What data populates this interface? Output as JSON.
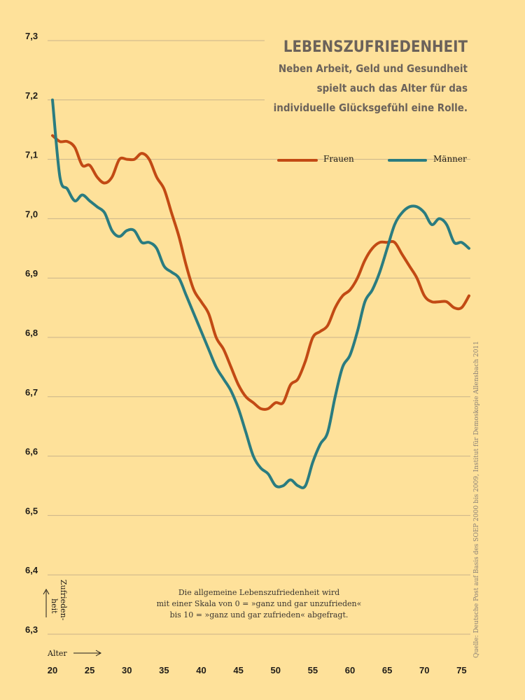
{
  "chart_data": {
    "type": "line",
    "title": "LEBENSZUFRIEDENHEIT",
    "subtitle": [
      "Neben Arbeit, Geld und Gesundheit",
      "spielt auch das Alter für das",
      "individuelle Glücksgefühl eine Rolle."
    ],
    "xlabel": "Alter",
    "ylabel": "Zufrieden-heit",
    "xlim": [
      20,
      76
    ],
    "ylim": [
      6.3,
      7.3
    ],
    "x_ticks": [
      "20",
      "25",
      "30",
      "35",
      "40",
      "45",
      "50",
      "55",
      "60",
      "65",
      "70",
      "75"
    ],
    "y_ticks": [
      "7,3",
      "7,2",
      "7,1",
      "7,0",
      "6,9",
      "6,8",
      "6,7",
      "6,6",
      "6,5",
      "6,4",
      "6,3"
    ],
    "grid": true,
    "legend_position": "top-right",
    "series": [
      {
        "name": "Frauen",
        "color": "#c24a14",
        "points": [
          [
            20,
            7.14
          ],
          [
            21,
            7.13
          ],
          [
            22,
            7.13
          ],
          [
            23,
            7.12
          ],
          [
            24,
            7.09
          ],
          [
            25,
            7.09
          ],
          [
            26,
            7.07
          ],
          [
            27,
            7.06
          ],
          [
            28,
            7.07
          ],
          [
            29,
            7.1
          ],
          [
            30,
            7.1
          ],
          [
            31,
            7.1
          ],
          [
            32,
            7.11
          ],
          [
            33,
            7.1
          ],
          [
            34,
            7.07
          ],
          [
            35,
            7.05
          ],
          [
            36,
            7.01
          ],
          [
            37,
            6.97
          ],
          [
            38,
            6.92
          ],
          [
            39,
            6.88
          ],
          [
            40,
            6.86
          ],
          [
            41,
            6.84
          ],
          [
            42,
            6.8
          ],
          [
            43,
            6.78
          ],
          [
            44,
            6.75
          ],
          [
            45,
            6.72
          ],
          [
            46,
            6.7
          ],
          [
            47,
            6.69
          ],
          [
            48,
            6.68
          ],
          [
            49,
            6.68
          ],
          [
            50,
            6.69
          ],
          [
            51,
            6.69
          ],
          [
            52,
            6.72
          ],
          [
            53,
            6.73
          ],
          [
            54,
            6.76
          ],
          [
            55,
            6.8
          ],
          [
            56,
            6.81
          ],
          [
            57,
            6.82
          ],
          [
            58,
            6.85
          ],
          [
            59,
            6.87
          ],
          [
            60,
            6.88
          ],
          [
            61,
            6.9
          ],
          [
            62,
            6.93
          ],
          [
            63,
            6.95
          ],
          [
            64,
            6.96
          ],
          [
            65,
            6.96
          ],
          [
            66,
            6.96
          ],
          [
            67,
            6.94
          ],
          [
            68,
            6.92
          ],
          [
            69,
            6.9
          ],
          [
            70,
            6.87
          ],
          [
            71,
            6.86
          ],
          [
            72,
            6.86
          ],
          [
            73,
            6.86
          ],
          [
            74,
            6.85
          ],
          [
            75,
            6.85
          ],
          [
            76,
            6.87
          ]
        ]
      },
      {
        "name": "Männer",
        "color": "#2a7c80",
        "points": [
          [
            20,
            7.2
          ],
          [
            21,
            7.07
          ],
          [
            22,
            7.05
          ],
          [
            23,
            7.03
          ],
          [
            24,
            7.04
          ],
          [
            25,
            7.03
          ],
          [
            26,
            7.02
          ],
          [
            27,
            7.01
          ],
          [
            28,
            6.98
          ],
          [
            29,
            6.97
          ],
          [
            30,
            6.98
          ],
          [
            31,
            6.98
          ],
          [
            32,
            6.96
          ],
          [
            33,
            6.96
          ],
          [
            34,
            6.95
          ],
          [
            35,
            6.92
          ],
          [
            36,
            6.91
          ],
          [
            37,
            6.9
          ],
          [
            38,
            6.87
          ],
          [
            39,
            6.84
          ],
          [
            40,
            6.81
          ],
          [
            41,
            6.78
          ],
          [
            42,
            6.75
          ],
          [
            43,
            6.73
          ],
          [
            44,
            6.71
          ],
          [
            45,
            6.68
          ],
          [
            46,
            6.64
          ],
          [
            47,
            6.6
          ],
          [
            48,
            6.58
          ],
          [
            49,
            6.57
          ],
          [
            50,
            6.55
          ],
          [
            51,
            6.55
          ],
          [
            52,
            6.56
          ],
          [
            53,
            6.55
          ],
          [
            54,
            6.55
          ],
          [
            55,
            6.59
          ],
          [
            56,
            6.62
          ],
          [
            57,
            6.64
          ],
          [
            58,
            6.7
          ],
          [
            59,
            6.75
          ],
          [
            60,
            6.77
          ],
          [
            61,
            6.81
          ],
          [
            62,
            6.86
          ],
          [
            63,
            6.88
          ],
          [
            64,
            6.91
          ],
          [
            65,
            6.95
          ],
          [
            66,
            6.99
          ],
          [
            67,
            7.01
          ],
          [
            68,
            7.02
          ],
          [
            69,
            7.02
          ],
          [
            70,
            7.01
          ],
          [
            71,
            6.99
          ],
          [
            72,
            7.0
          ],
          [
            73,
            6.99
          ],
          [
            74,
            6.96
          ],
          [
            75,
            6.96
          ],
          [
            76,
            6.95
          ]
        ]
      }
    ],
    "note": [
      "Die allgemeine Lebenszufriedenheit wird",
      "mit einer Skala von 0 = »ganz und gar unzufrieden«",
      "bis 10 = »ganz und gar zufrieden« abgefragt."
    ],
    "source": "Quelle: Deutsche Post auf Basis des SOEP 2000 bis 2009, Institut für Demoskopie Allensbach 2011",
    "background": "#fee19a",
    "grid_color": "#c9b48a"
  }
}
